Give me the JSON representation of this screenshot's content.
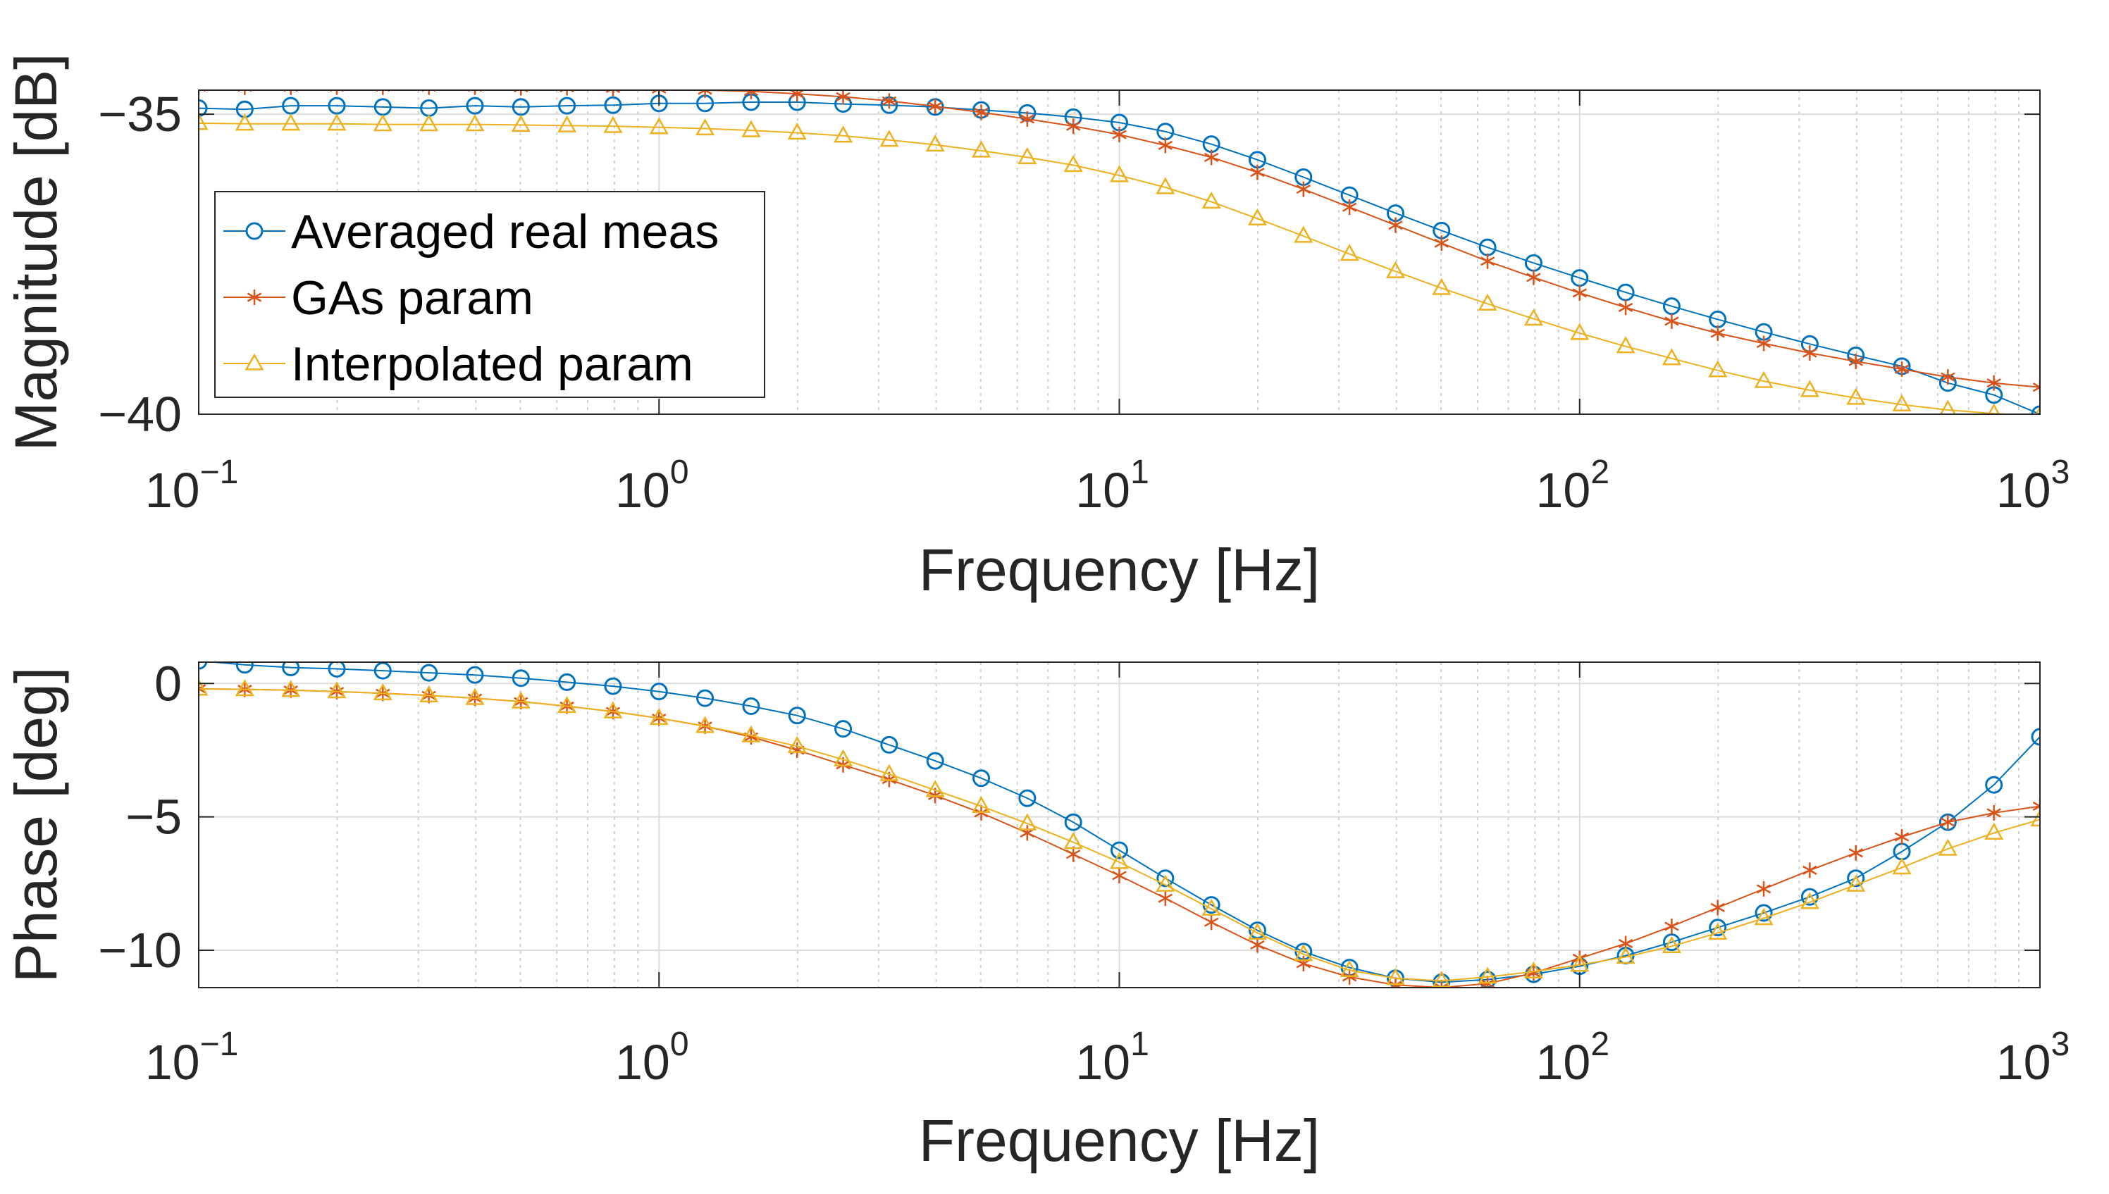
{
  "chart_data": [
    {
      "type": "line",
      "name": "magnitude",
      "xscale": "log",
      "xlim": [
        0.1,
        1000
      ],
      "ylim": [
        -40,
        -34.6
      ],
      "xlabel": "Frequency [Hz]",
      "ylabel": "Magnitude [dB]",
      "grid": true,
      "legend_position": "left",
      "x_ticks": [
        {
          "base": "10",
          "exp": "−1",
          "value": 0.1
        },
        {
          "base": "10",
          "exp": "0",
          "value": 1
        },
        {
          "base": "10",
          "exp": "1",
          "value": 10
        },
        {
          "base": "10",
          "exp": "2",
          "value": 100
        },
        {
          "base": "10",
          "exp": "3",
          "value": 1000
        }
      ],
      "y_ticks": [
        {
          "label": "−35",
          "value": -35
        },
        {
          "label": "−40",
          "value": -40
        }
      ],
      "x_exponents": [
        -1,
        -0.9,
        -0.8,
        -0.7,
        -0.6,
        -0.5,
        -0.4,
        -0.3,
        -0.2,
        -0.1,
        0,
        0.1,
        0.2,
        0.3,
        0.4,
        0.5,
        0.6,
        0.7,
        0.8,
        0.9,
        1,
        1.1,
        1.2,
        1.3,
        1.4,
        1.5,
        1.6,
        1.7,
        1.8,
        1.9,
        2,
        2.1,
        2.2,
        2.3,
        2.4,
        2.5,
        2.6,
        2.7,
        2.8,
        2.9,
        3
      ],
      "series": [
        {
          "name": "Averaged real meas",
          "color": "#0072BD",
          "marker": "circle",
          "values": [
            -34.9,
            -34.92,
            -34.86,
            -34.86,
            -34.88,
            -34.9,
            -34.86,
            -34.88,
            -34.86,
            -34.85,
            -34.82,
            -34.82,
            -34.8,
            -34.8,
            -34.83,
            -34.85,
            -34.88,
            -34.93,
            -34.98,
            -35.05,
            -35.14,
            -35.29,
            -35.5,
            -35.76,
            -36.05,
            -36.35,
            -36.65,
            -36.94,
            -37.22,
            -37.48,
            -37.73,
            -37.97,
            -38.2,
            -38.42,
            -38.63,
            -38.83,
            -39.02,
            -39.2,
            -39.48,
            -39.68,
            -40.0
          ]
        },
        {
          "name": "GAs param",
          "color": "#D95319",
          "marker": "asterisk",
          "values": [
            -34.55,
            -34.55,
            -34.55,
            -34.55,
            -34.55,
            -34.55,
            -34.55,
            -34.56,
            -34.56,
            -34.57,
            -34.58,
            -34.6,
            -34.62,
            -34.66,
            -34.71,
            -34.78,
            -34.87,
            -34.97,
            -35.08,
            -35.2,
            -35.34,
            -35.52,
            -35.72,
            -35.97,
            -36.25,
            -36.55,
            -36.85,
            -37.15,
            -37.45,
            -37.72,
            -37.98,
            -38.22,
            -38.45,
            -38.65,
            -38.82,
            -38.98,
            -39.12,
            -39.25,
            -39.38,
            -39.48,
            -39.55
          ]
        },
        {
          "name": "Interpolated param",
          "color": "#EDB120",
          "marker": "triangle",
          "values": [
            -35.15,
            -35.16,
            -35.16,
            -35.16,
            -35.17,
            -35.17,
            -35.17,
            -35.18,
            -35.19,
            -35.2,
            -35.22,
            -35.24,
            -35.27,
            -35.31,
            -35.36,
            -35.43,
            -35.51,
            -35.61,
            -35.72,
            -35.85,
            -36.02,
            -36.22,
            -36.46,
            -36.74,
            -37.03,
            -37.33,
            -37.62,
            -37.9,
            -38.16,
            -38.41,
            -38.65,
            -38.87,
            -39.07,
            -39.27,
            -39.45,
            -39.6,
            -39.73,
            -39.84,
            -39.93,
            -39.99,
            -40.03
          ]
        }
      ]
    },
    {
      "type": "line",
      "name": "phase",
      "xscale": "log",
      "xlim": [
        0.1,
        1000
      ],
      "ylim": [
        -11.4,
        0.8
      ],
      "xlabel": "Frequency [Hz]",
      "ylabel": "Phase [deg]",
      "grid": true,
      "x_ticks": [
        {
          "base": "10",
          "exp": "−1",
          "value": 0.1
        },
        {
          "base": "10",
          "exp": "0",
          "value": 1
        },
        {
          "base": "10",
          "exp": "1",
          "value": 10
        },
        {
          "base": "10",
          "exp": "2",
          "value": 100
        },
        {
          "base": "10",
          "exp": "3",
          "value": 1000
        }
      ],
      "y_ticks": [
        {
          "label": "0",
          "value": 0
        },
        {
          "label": "−5",
          "value": -5
        },
        {
          "label": "−10",
          "value": -10
        }
      ],
      "x_exponents": [
        -1,
        -0.9,
        -0.8,
        -0.7,
        -0.6,
        -0.5,
        -0.4,
        -0.3,
        -0.2,
        -0.1,
        0,
        0.1,
        0.2,
        0.3,
        0.4,
        0.5,
        0.6,
        0.7,
        0.8,
        0.9,
        1,
        1.1,
        1.2,
        1.3,
        1.4,
        1.5,
        1.6,
        1.7,
        1.8,
        1.9,
        2,
        2.1,
        2.2,
        2.3,
        2.4,
        2.5,
        2.6,
        2.7,
        2.8,
        2.9,
        3
      ],
      "series": [
        {
          "name": "Averaged real meas",
          "color": "#0072BD",
          "marker": "circle",
          "values": [
            0.85,
            0.7,
            0.6,
            0.55,
            0.48,
            0.4,
            0.32,
            0.2,
            0.05,
            -0.1,
            -0.3,
            -0.55,
            -0.85,
            -1.2,
            -1.7,
            -2.3,
            -2.9,
            -3.55,
            -4.3,
            -5.2,
            -6.25,
            -7.3,
            -8.3,
            -9.25,
            -10.05,
            -10.65,
            -11.05,
            -11.2,
            -11.1,
            -10.9,
            -10.6,
            -10.2,
            -9.7,
            -9.15,
            -8.6,
            -8.0,
            -7.3,
            -6.3,
            -5.2,
            -3.8,
            -2.0
          ]
        },
        {
          "name": "GAs param",
          "color": "#D95319",
          "marker": "asterisk",
          "values": [
            -0.2,
            -0.22,
            -0.25,
            -0.3,
            -0.37,
            -0.45,
            -0.55,
            -0.68,
            -0.85,
            -1.05,
            -1.3,
            -1.6,
            -2.0,
            -2.5,
            -3.05,
            -3.6,
            -4.2,
            -4.85,
            -5.6,
            -6.4,
            -7.2,
            -8.05,
            -8.95,
            -9.8,
            -10.5,
            -11.0,
            -11.3,
            -11.4,
            -11.25,
            -10.85,
            -10.3,
            -9.75,
            -9.1,
            -8.4,
            -7.7,
            -7.0,
            -6.35,
            -5.75,
            -5.2,
            -4.85,
            -4.6
          ]
        },
        {
          "name": "Interpolated param",
          "color": "#EDB120",
          "marker": "triangle",
          "values": [
            -0.2,
            -0.22,
            -0.25,
            -0.3,
            -0.37,
            -0.45,
            -0.55,
            -0.68,
            -0.85,
            -1.05,
            -1.3,
            -1.6,
            -1.95,
            -2.35,
            -2.85,
            -3.4,
            -4.0,
            -4.6,
            -5.25,
            -5.95,
            -6.7,
            -7.55,
            -8.45,
            -9.35,
            -10.15,
            -10.75,
            -11.05,
            -11.15,
            -11.0,
            -10.8,
            -10.55,
            -10.25,
            -9.85,
            -9.35,
            -8.8,
            -8.2,
            -7.55,
            -6.9,
            -6.2,
            -5.6,
            -5.1
          ]
        }
      ]
    }
  ]
}
